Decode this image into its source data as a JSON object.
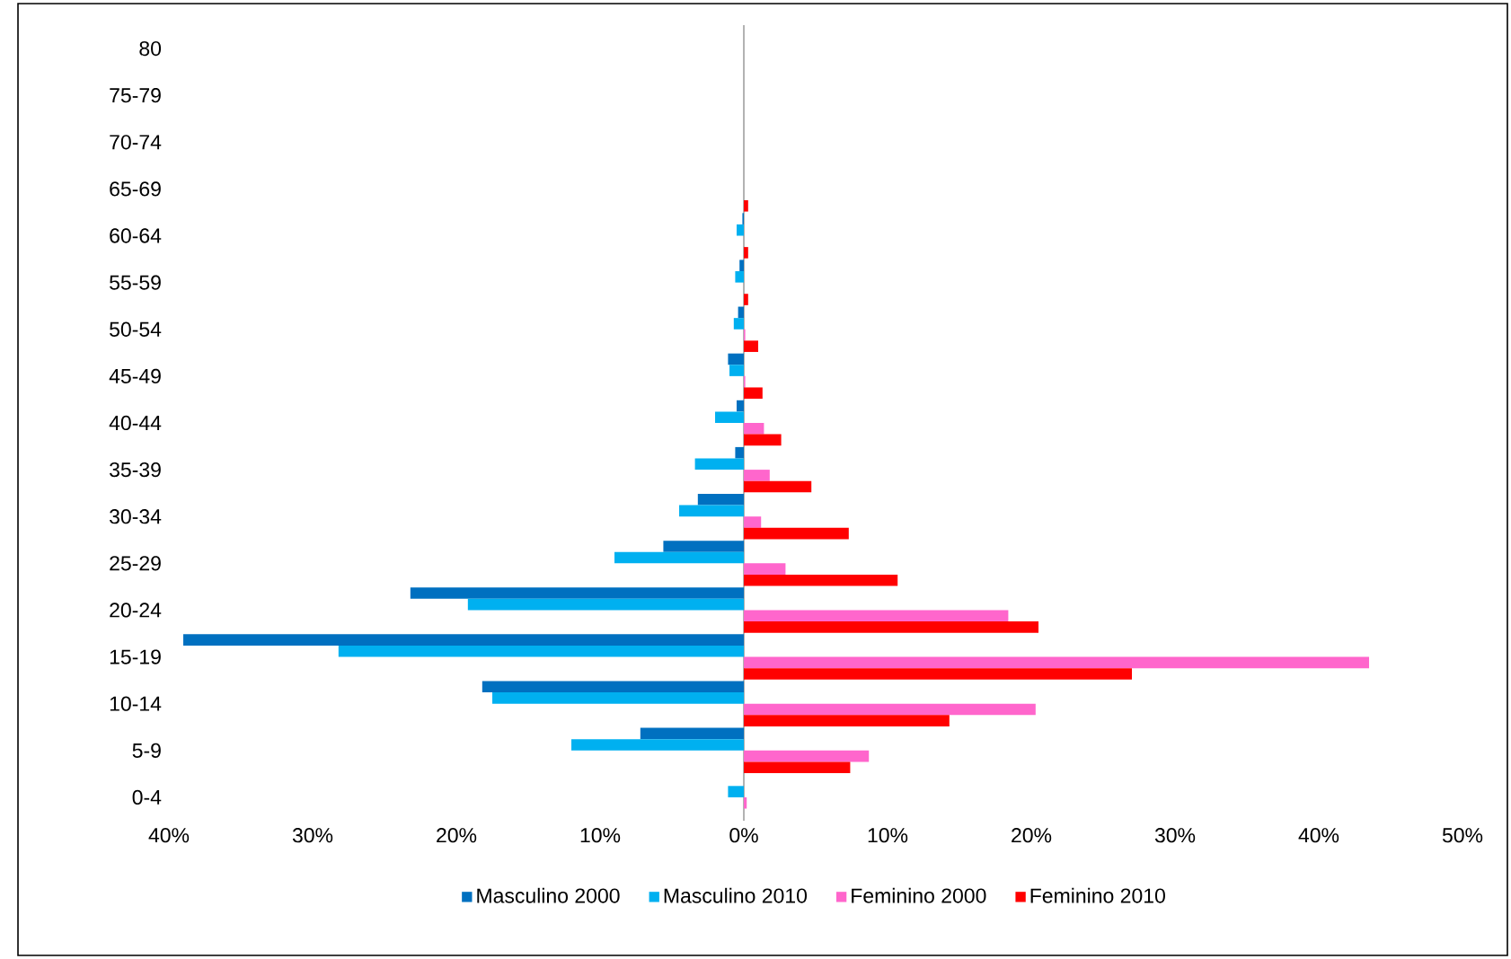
{
  "chart_data": {
    "type": "bar",
    "orientation": "horizontal",
    "categories": [
      "80",
      "75-79",
      "70-74",
      "65-69",
      "60-64",
      "55-59",
      "50-54",
      "45-49",
      "40-44",
      "35-39",
      "30-34",
      "25-29",
      "20-24",
      "15-19",
      "10-14",
      "5-9",
      "0-4"
    ],
    "series": [
      {
        "name": "Masculino 2000",
        "color": "#0070c0",
        "values": [
          0,
          0,
          0,
          0,
          -0.1,
          -0.3,
          -0.4,
          -1.1,
          -0.5,
          -0.6,
          -3.2,
          -5.6,
          -23.2,
          -39,
          -18.2,
          -7.2,
          0
        ]
      },
      {
        "name": "Masculino 2010",
        "color": "#00b0f0",
        "values": [
          0,
          0,
          0,
          0,
          -0.5,
          -0.6,
          -0.7,
          -1,
          -2,
          -3.4,
          -4.5,
          -9,
          -19.2,
          -28.2,
          -17.5,
          -12,
          -1.1
        ]
      },
      {
        "name": "Feminino 2000",
        "color": "#ff66cc",
        "values": [
          0,
          0,
          0,
          0,
          0,
          0,
          0.1,
          0.1,
          1.4,
          1.8,
          1.2,
          2.9,
          18.4,
          43.5,
          20.3,
          8.7,
          0.2
        ]
      },
      {
        "name": "Feminino 2010",
        "color": "#ff0000",
        "values": [
          0,
          0,
          0,
          0.3,
          0.3,
          0.3,
          1,
          1.3,
          2.6,
          4.7,
          7.3,
          10.7,
          20.5,
          27,
          14.3,
          7.4,
          0
        ]
      }
    ],
    "xlim": [
      -40,
      50
    ],
    "xticks": [
      {
        "value": -40,
        "label": "40%"
      },
      {
        "value": -30,
        "label": "30%"
      },
      {
        "value": -20,
        "label": "20%"
      },
      {
        "value": -10,
        "label": "10%"
      },
      {
        "value": 0,
        "label": "0%"
      },
      {
        "value": 10,
        "label": "10%"
      },
      {
        "value": 20,
        "label": "20%"
      },
      {
        "value": 30,
        "label": "30%"
      },
      {
        "value": 40,
        "label": "40%"
      },
      {
        "value": 50,
        "label": "50%"
      }
    ],
    "legend": "bottom"
  }
}
